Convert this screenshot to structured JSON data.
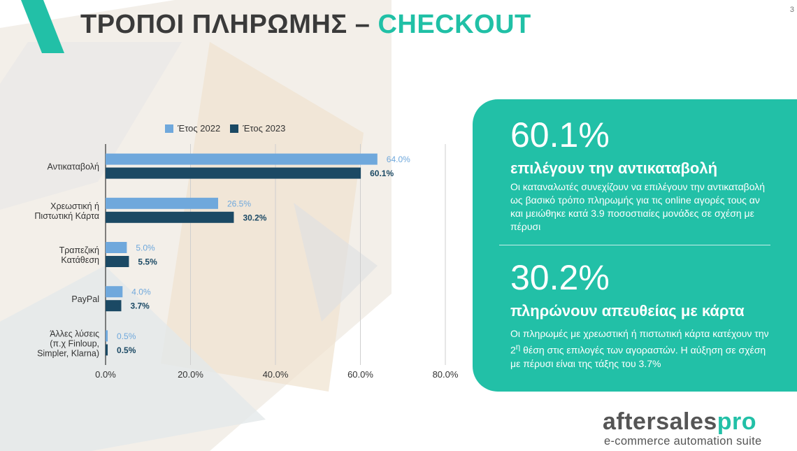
{
  "header": {
    "title_part1": "ΤΡΟΠΟΙ ΠΛΗΡΩΜΗΣ –",
    "title_part2": "CHECKOUT",
    "page_number": "3"
  },
  "colors": {
    "accent": "#22c0a7",
    "series_2022": "#6fa8dc",
    "series_2023": "#1b4964",
    "title_dark": "#3a3a3a"
  },
  "chart_data": {
    "type": "bar",
    "orientation": "horizontal",
    "categories": [
      [
        "Αντικαταβολή"
      ],
      [
        "Χρεωστική ή",
        "Πιστωτική Κάρτα"
      ],
      [
        "Τραπεζική",
        "Κατάθεση"
      ],
      [
        "PayPal"
      ],
      [
        "Άλλες λύσεις",
        "(π.χ Finloup,",
        "Simpler, Klarna)"
      ]
    ],
    "series": [
      {
        "name": "Έτος 2022",
        "values": [
          64.0,
          26.5,
          5.0,
          4.0,
          0.5
        ],
        "labels": [
          "64.0%",
          "26.5%",
          "5.0%",
          "4.0%",
          "0.5%"
        ]
      },
      {
        "name": "Έτος 2023",
        "values": [
          60.1,
          30.2,
          5.5,
          3.7,
          0.5
        ],
        "labels": [
          "60.1%",
          "30.2%",
          "5.5%",
          "3.7%",
          "0.5%"
        ]
      }
    ],
    "xlim": [
      0,
      80
    ],
    "xticks": [
      0,
      20,
      40,
      60,
      80
    ],
    "xtick_labels": [
      "0.0%",
      "20.0%",
      "40.0%",
      "60.0%",
      "80.0%"
    ],
    "grid": true,
    "legend_position": "top"
  },
  "panel": {
    "stat1": {
      "value": "60.1%",
      "headline": "επιλέγουν την αντικαταβολή",
      "text": "Οι καταναλωτές συνεχίζουν να επιλέγουν την αντικαταβολή ως βασικό τρόπο πληρωμής για τις online αγορές τους αν και μειώθηκε κατά 3.9 ποσοστιαίες μονάδες σε σχέση με πέρυσι"
    },
    "stat2": {
      "value": "30.2%",
      "headline": "πληρώνουν απευθείας με κάρτα",
      "text_before": "Οι πληρωμές με χρεωστική ή πιστωτική κάρτα κατέχουν την 2",
      "text_sup": "η",
      "text_after": " θέση στις επιλογές των αγοραστών. Η αύξηση σε σχέση με πέρυσι είναι της τάξης του 3.7%"
    }
  },
  "logo": {
    "name_main": "aftersales",
    "name_accent": "pro",
    "tagline": "e-commerce automation suite"
  }
}
